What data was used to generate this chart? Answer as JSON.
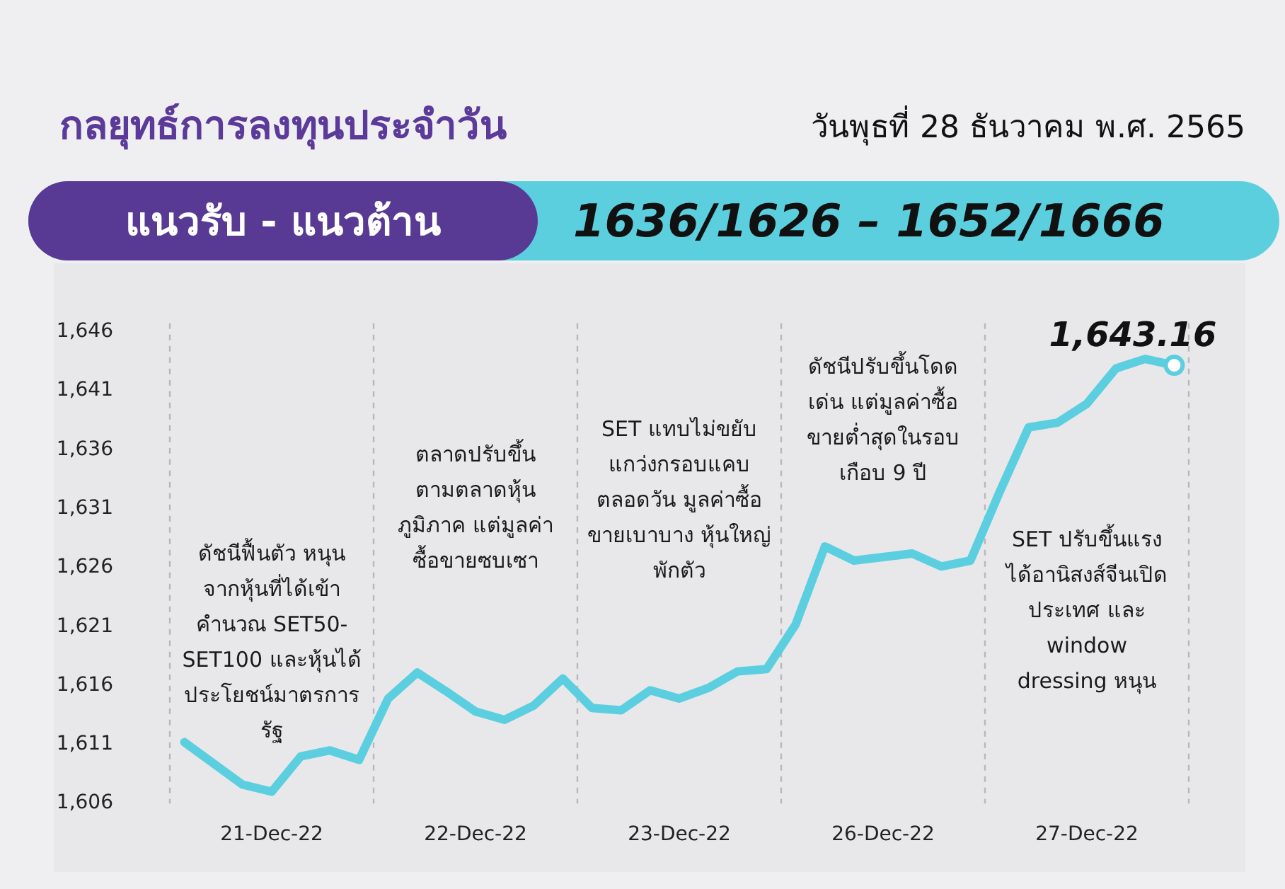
{
  "chart_data": {
    "type": "line",
    "title": "กลยุทธ์การลงทุนประจำวัน",
    "subtitle": "วันพุธที่ 28 ธันวาคม พ.ศ. 2565",
    "annotations": [
      "แนวรับ - แนวต้าน",
      "1636/1626 – 1652/1666",
      "ดัชนีฟื้นตัว หนุน\nจากหุ้นที่ได้เข้า\nคำนวณ SET50-\nSET100 และหุ้นได้\nประโยชน์มาตรการ\nรัฐ",
      "ตลาดปรับขึ้น\nตามตลาดหุ้น\nภูมิภาค แต่มูลค่า\nซื้อขายซบเซา",
      "SET แทบไม่ขยับ\nแกว่งกรอบแคบ\nตลอดวัน มูลค่าซื้อ\nขายเบาบาง หุ้นใหญ่\nพักตัว",
      "ดัชนีปรับขึ้นโดด\nเด่น แต่มูลค่าซื้อ\nขายต่ำสุดในรอบ\nเกือบ 9 ปี",
      "SET ปรับขึ้นแรง\nได้อานิสงส์จีนเปิด\nประเทศ และ\nwindow\ndressing หนุน",
      {
        "text": "1,643.16",
        "y": 1643.16
      }
    ],
    "categories": [
      null,
      null,
      null,
      "21-Dec-22",
      null,
      null,
      null,
      null,
      null,
      null,
      "22-Dec-22",
      null,
      null,
      null,
      null,
      null,
      null,
      "23-Dec-22",
      null,
      null,
      null,
      null,
      null,
      null,
      "26-Dec-22",
      null,
      null,
      null,
      null,
      null,
      null,
      "27-Dec-22",
      null,
      null,
      null
    ],
    "series": [
      {
        "color": "#5bcfdf",
        "values": [
          1611.2,
          1609.4,
          1607.6,
          1607.0,
          1610.0,
          1610.5,
          1609.7,
          1614.9,
          1617.1,
          1615.5,
          1613.8,
          1613.1,
          1614.3,
          1616.6,
          1614.1,
          1613.9,
          1615.6,
          1614.9,
          1615.8,
          1617.2,
          1617.4,
          1621.2,
          1627.8,
          1626.6,
          1626.9,
          1627.2,
          1626.1,
          1626.6,
          1632.4,
          1637.9,
          1638.3,
          1639.9,
          1642.9,
          1643.7,
          1643.16
        ]
      }
    ],
    "ylim": [
      1606,
      1646
    ],
    "yticks": [
      {
        "value": 1606,
        "label": "1,606"
      },
      {
        "value": 1611,
        "label": "1,611"
      },
      {
        "value": 1616,
        "label": "1,616"
      },
      {
        "value": 1621,
        "label": "1,621"
      },
      {
        "value": 1626,
        "label": "1,626"
      },
      {
        "value": 1631,
        "label": "1,631"
      },
      {
        "value": 1636,
        "label": "1,636"
      },
      {
        "value": 1641,
        "label": "1,641"
      },
      {
        "value": 1646,
        "label": "1,646"
      }
    ],
    "grid": "x",
    "legend": false,
    "marker": "none",
    "line_style": "solid"
  }
}
